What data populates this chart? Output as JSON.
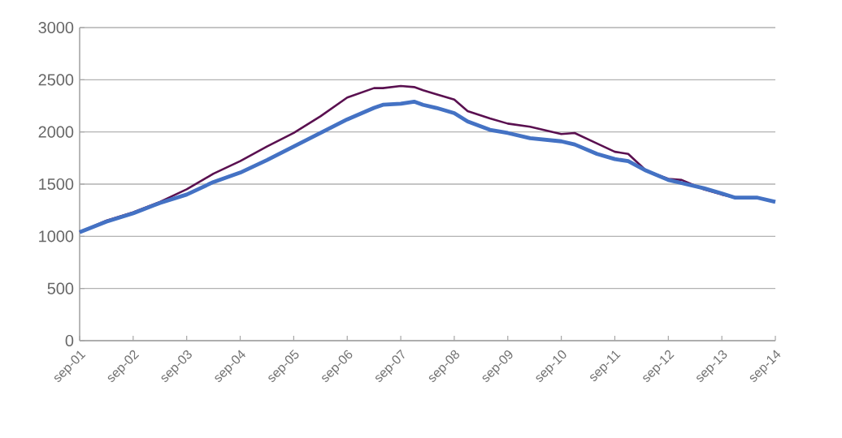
{
  "chart_data": {
    "type": "line",
    "x": [
      "2001-09",
      "2002-03",
      "2002-09",
      "2003-03",
      "2003-09",
      "2004-03",
      "2004-09",
      "2005-03",
      "2005-09",
      "2006-03",
      "2006-09",
      "2007-03",
      "2007-05",
      "2007-09",
      "2007-12",
      "2008-02",
      "2008-05",
      "2008-09",
      "2008-12",
      "2009-05",
      "2009-09",
      "2010-02",
      "2010-09",
      "2010-12",
      "2011-05",
      "2011-09",
      "2011-12",
      "2012-04",
      "2012-09",
      "2012-12",
      "2013-05",
      "2013-09",
      "2013-12",
      "2014-05",
      "2014-09"
    ],
    "series": [
      {
        "color": "#5a1050",
        "values": [
          1040,
          1150,
          1230,
          1330,
          1450,
          1600,
          1720,
          1860,
          1990,
          2150,
          2330,
          2420,
          2420,
          2440,
          2430,
          2400,
          2360,
          2310,
          2200,
          2130,
          2080,
          2050,
          1980,
          1990,
          1890,
          1810,
          1790,
          1630,
          1550,
          1540,
          1450,
          1400,
          1370,
          null,
          null
        ]
      },
      {
        "color": "#4472c4",
        "values": [
          1040,
          1140,
          1220,
          1320,
          1400,
          1520,
          1610,
          1730,
          1860,
          1990,
          2120,
          2230,
          2260,
          2270,
          2290,
          2260,
          2230,
          2180,
          2100,
          2020,
          1990,
          1940,
          1910,
          1880,
          1790,
          1740,
          1720,
          1630,
          1540,
          1510,
          1460,
          1410,
          1370,
          1370,
          1330
        ]
      }
    ],
    "xlim": [
      "2001-09",
      "2014-09"
    ],
    "xticks": [
      {
        "value": "2001-09",
        "label": "sep-01"
      },
      {
        "value": "2002-09",
        "label": "sep-02"
      },
      {
        "value": "2003-09",
        "label": "sep-03"
      },
      {
        "value": "2004-09",
        "label": "sep-04"
      },
      {
        "value": "2005-09",
        "label": "sep-05"
      },
      {
        "value": "2006-09",
        "label": "sep-06"
      },
      {
        "value": "2007-09",
        "label": "sep-07"
      },
      {
        "value": "2008-09",
        "label": "sep-08"
      },
      {
        "value": "2009-09",
        "label": "sep-09"
      },
      {
        "value": "2010-09",
        "label": "sep-10"
      },
      {
        "value": "2011-09",
        "label": "sep-11"
      },
      {
        "value": "2012-09",
        "label": "sep-12"
      },
      {
        "value": "2013-09",
        "label": "sep-13"
      },
      {
        "value": "2014-09",
        "label": "sep-14"
      }
    ],
    "ylim": [
      0,
      3000
    ],
    "yticks": [
      0,
      500,
      1000,
      1500,
      2000,
      2500,
      3000
    ],
    "grid": "y",
    "marker": "none",
    "line_style": "solid"
  }
}
